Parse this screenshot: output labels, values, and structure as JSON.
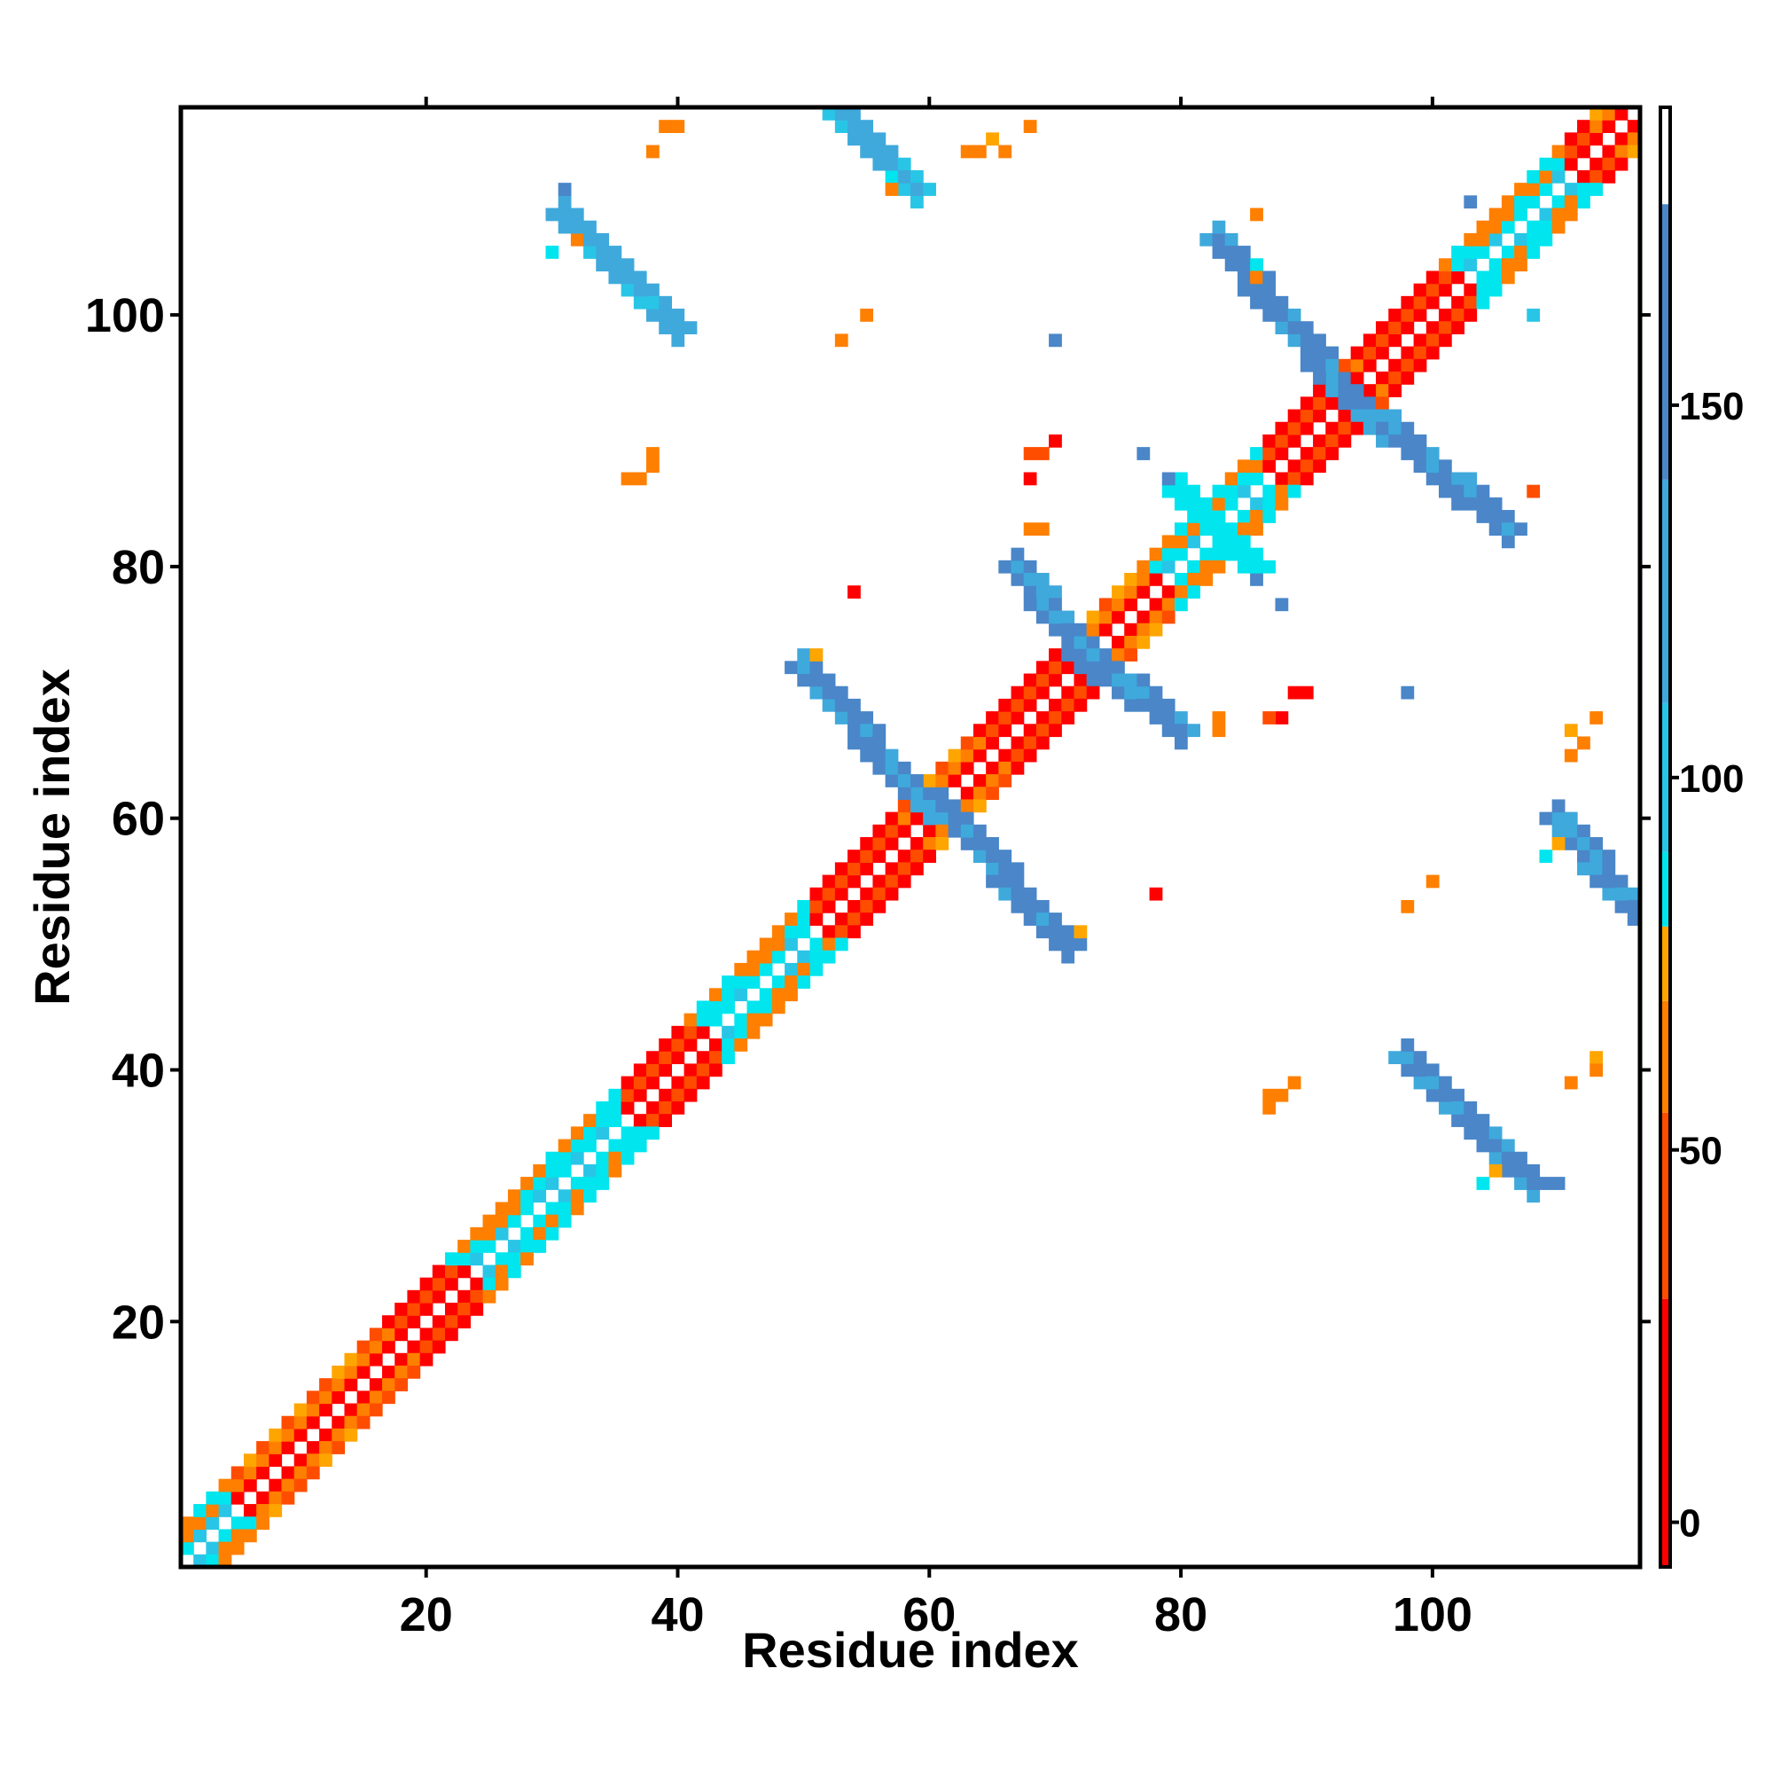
{
  "chart_data": {
    "type": "heatmap",
    "title": "",
    "xlabel": "Residue index",
    "ylabel": "Residue index",
    "xlim": [
      0.5,
      116.5
    ],
    "ylim": [
      0.5,
      116.5
    ],
    "xticks": [
      20,
      40,
      60,
      80,
      100
    ],
    "yticks": [
      20,
      40,
      60,
      80,
      100
    ],
    "grid": false,
    "legend": "none",
    "colorbar": {
      "position": "right",
      "range": [
        -6,
        190
      ],
      "ticks": [
        0,
        50,
        100,
        150
      ],
      "bands": [
        {
          "from": -6,
          "to": 30,
          "color": "#ff0000"
        },
        {
          "from": 30,
          "to": 55,
          "color": "#ff4d00"
        },
        {
          "from": 55,
          "to": 70,
          "color": "#ff7f00"
        },
        {
          "from": 70,
          "to": 80,
          "color": "#ffa500"
        },
        {
          "from": 80,
          "to": 90,
          "color": "#00e5ee"
        },
        {
          "from": 90,
          "to": 110,
          "color": "#29c5e6"
        },
        {
          "from": 110,
          "to": 140,
          "color": "#3fa9dc"
        },
        {
          "from": 140,
          "to": 177,
          "color": "#4a86c8"
        },
        {
          "from": 177,
          "to": 190,
          "color": "#ffffff"
        }
      ]
    },
    "palette": {
      "red": "#ff0000",
      "red_orange": "#ff4d00",
      "orange": "#ff7f00",
      "light_orange": "#ffa500",
      "cyan": "#00e5ee",
      "sky": "#29c5e6",
      "light_blue": "#3fa9dc",
      "steel_blue": "#4a86c8"
    },
    "structure": {
      "near_diagonal": {
        "description": "cells at |i-j| = 1..3 along the full diagonal; colour encodes angle",
        "offsets": [
          1,
          2,
          3
        ]
      },
      "red_regions": [
        [
          20,
          25
        ],
        [
          38,
          41
        ],
        [
          52,
          57
        ],
        [
          67,
          71
        ],
        [
          87,
          92
        ],
        [
          97,
          102
        ],
        [
          106,
          112
        ]
      ],
      "cyan_regions": [
        [
          1,
          4
        ],
        [
          25,
          29
        ],
        [
          31,
          35
        ],
        [
          44,
          50
        ],
        [
          80,
          86
        ],
        [
          104,
          110
        ]
      ],
      "antiparallel_blocks": [
        {
          "i_range": [
            31,
            40
          ],
          "j_range": [
            99,
            108
          ],
          "color": "light_blue"
        },
        {
          "i_range": [
            53,
            59
          ],
          "j_range": [
            110,
            116
          ],
          "color": "light_blue"
        },
        {
          "i_range": [
            50,
            60
          ],
          "j_range": [
            61,
            72
          ],
          "color": "steel_blue"
        },
        {
          "i_range": [
            61,
            71
          ],
          "j_range": [
            50,
            61
          ],
          "color": "steel_blue"
        },
        {
          "i_range": [
            67,
            73
          ],
          "j_range": [
            72,
            80
          ],
          "color": "steel_blue"
        },
        {
          "i_range": [
            73,
            80
          ],
          "j_range": [
            67,
            73
          ],
          "color": "steel_blue"
        },
        {
          "i_range": [
            83,
            93
          ],
          "j_range": [
            94,
            106
          ],
          "color": "steel_blue"
        },
        {
          "i_range": [
            94,
            106
          ],
          "j_range": [
            83,
            93
          ],
          "color": "steel_blue"
        },
        {
          "i_range": [
            98,
            108
          ],
          "j_range": [
            31,
            41
          ],
          "color": "steel_blue"
        },
        {
          "i_range": [
            110,
            116
          ],
          "j_range": [
            53,
            60
          ],
          "color": "steel_blue"
        },
        {
          "i_range": [
            80,
            86
          ],
          "j_range": [
            80,
            86
          ],
          "color": "cyan"
        }
      ],
      "scattered_points": [
        {
          "i": 39,
          "j": 115,
          "c": "orange"
        },
        {
          "i": 40,
          "j": 115,
          "c": "orange"
        },
        {
          "i": 38,
          "j": 113,
          "c": "orange"
        },
        {
          "i": 31,
          "j": 110,
          "c": "steel_blue"
        },
        {
          "i": 57,
          "j": 110,
          "c": "orange"
        },
        {
          "i": 63,
          "j": 113,
          "c": "orange"
        },
        {
          "i": 64,
          "j": 113,
          "c": "orange"
        },
        {
          "i": 65,
          "j": 114,
          "c": "light_orange"
        },
        {
          "i": 66,
          "j": 113,
          "c": "orange"
        },
        {
          "i": 68,
          "j": 115,
          "c": "orange"
        },
        {
          "i": 86,
          "j": 108,
          "c": "orange"
        },
        {
          "i": 103,
          "j": 109,
          "c": "steel_blue"
        },
        {
          "i": 108,
          "j": 100,
          "c": "sky"
        },
        {
          "i": 55,
          "j": 100,
          "c": "orange"
        },
        {
          "i": 53,
          "j": 98,
          "c": "orange"
        },
        {
          "i": 70,
          "j": 98,
          "c": "steel_blue"
        },
        {
          "i": 38,
          "j": 89,
          "c": "orange"
        },
        {
          "i": 38,
          "j": 88,
          "c": "orange"
        },
        {
          "i": 37,
          "j": 87,
          "c": "orange"
        },
        {
          "i": 36,
          "j": 87,
          "c": "orange"
        },
        {
          "i": 68,
          "j": 89,
          "c": "red_orange"
        },
        {
          "i": 69,
          "j": 89,
          "c": "red_orange"
        },
        {
          "i": 70,
          "j": 90,
          "c": "red"
        },
        {
          "i": 68,
          "j": 87,
          "c": "red"
        },
        {
          "i": 77,
          "j": 89,
          "c": "steel_blue"
        },
        {
          "i": 79,
          "j": 87,
          "c": "steel_blue"
        },
        {
          "i": 108,
          "j": 86,
          "c": "red_orange"
        },
        {
          "i": 68,
          "j": 83,
          "c": "orange"
        },
        {
          "i": 69,
          "j": 83,
          "c": "orange"
        },
        {
          "i": 54,
          "j": 78,
          "c": "red"
        },
        {
          "i": 86,
          "j": 79,
          "c": "steel_blue"
        },
        {
          "i": 88,
          "j": 77,
          "c": "steel_blue"
        },
        {
          "i": 51,
          "j": 73,
          "c": "light_orange"
        },
        {
          "i": 88,
          "j": 68,
          "c": "red"
        },
        {
          "i": 89,
          "j": 70,
          "c": "red"
        },
        {
          "i": 90,
          "j": 70,
          "c": "red"
        },
        {
          "i": 87,
          "j": 68,
          "c": "red_orange"
        },
        {
          "i": 83,
          "j": 68,
          "c": "orange"
        },
        {
          "i": 83,
          "j": 67,
          "c": "orange"
        },
        {
          "i": 98,
          "j": 70,
          "c": "steel_blue"
        },
        {
          "i": 113,
          "j": 68,
          "c": "orange"
        },
        {
          "i": 111,
          "j": 67,
          "c": "light_orange"
        },
        {
          "i": 112,
          "j": 66,
          "c": "orange"
        },
        {
          "i": 111,
          "j": 65,
          "c": "orange"
        },
        {
          "i": 78,
          "j": 54,
          "c": "red"
        },
        {
          "i": 100,
          "j": 55,
          "c": "orange"
        },
        {
          "i": 98,
          "j": 53,
          "c": "orange"
        },
        {
          "i": 109,
          "j": 57,
          "c": "cyan"
        },
        {
          "i": 110,
          "j": 58,
          "c": "light_orange"
        },
        {
          "i": 72,
          "j": 51,
          "c": "light_orange"
        },
        {
          "i": 113,
          "j": 41,
          "c": "light_orange"
        },
        {
          "i": 113,
          "j": 40,
          "c": "orange"
        },
        {
          "i": 111,
          "j": 39,
          "c": "orange"
        },
        {
          "i": 89,
          "j": 39,
          "c": "orange"
        },
        {
          "i": 88,
          "j": 38,
          "c": "orange"
        },
        {
          "i": 87,
          "j": 38,
          "c": "orange"
        },
        {
          "i": 87,
          "j": 37,
          "c": "orange"
        },
        {
          "i": 110,
          "j": 31,
          "c": "steel_blue"
        },
        {
          "i": 105,
          "j": 32,
          "c": "light_orange"
        },
        {
          "i": 104,
          "j": 31,
          "c": "cyan"
        },
        {
          "i": 86,
          "j": 103,
          "c": "orange"
        },
        {
          "i": 86,
          "j": 104,
          "c": "cyan"
        },
        {
          "i": 30,
          "j": 105,
          "c": "cyan"
        },
        {
          "i": 32,
          "j": 106,
          "c": "orange"
        },
        {
          "i": 57,
          "j": 111,
          "c": "cyan"
        }
      ]
    }
  }
}
